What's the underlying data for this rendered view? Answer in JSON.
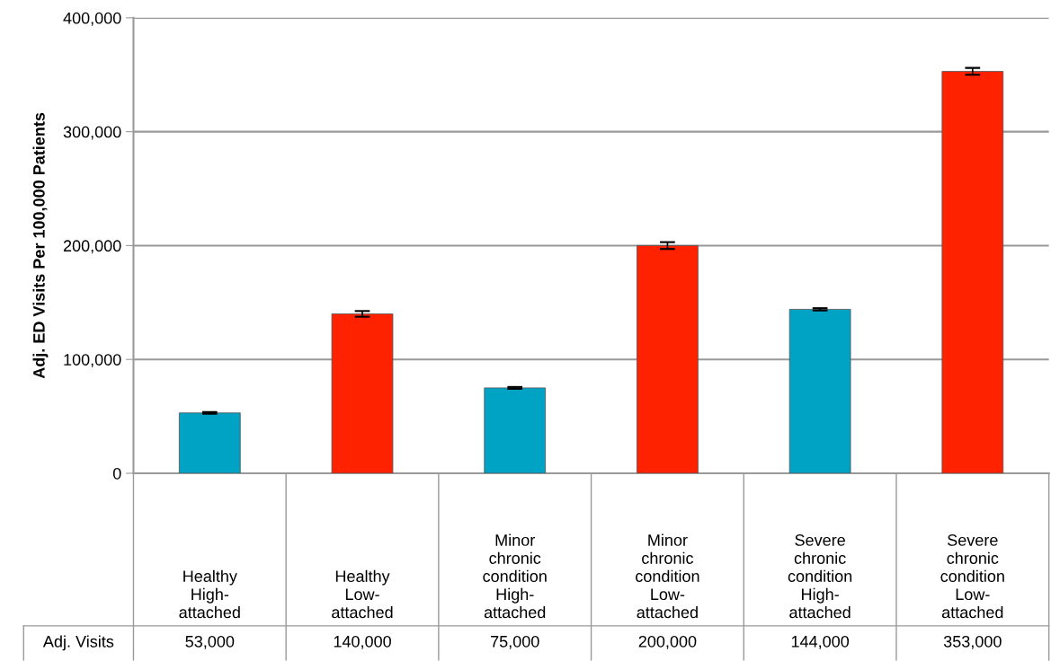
{
  "chart_data": {
    "type": "bar",
    "ylabel": "Adj. ED Visits Per 100,000 Patients",
    "categories": [
      "Healthy\nHigh-\nattached",
      "Healthy\nLow-\nattached",
      "Minor\nchronic\ncondition\nHigh-\nattached",
      "Minor\nchronic\ncondition\nLow-\nattached",
      "Severe\nchronic\ncondition\nHigh-\nattached",
      "Severe\nchronic\ncondition\nLow-\nattached"
    ],
    "series": [
      {
        "name": "Adj. Visits",
        "colors": [
          "#00a3c4",
          "#ff2200",
          "#00a3c4",
          "#ff2200",
          "#00a3c4",
          "#ff2200"
        ],
        "values": [
          53000,
          140000,
          75000,
          200000,
          144000,
          353000
        ],
        "errors": [
          700,
          2500,
          800,
          3000,
          1000,
          3000
        ],
        "value_labels": [
          "53,000",
          "140,000",
          "75,000",
          "200,000",
          "144,000",
          "353,000"
        ]
      }
    ],
    "ylim": [
      0,
      400000
    ],
    "yticks": [
      {
        "value": 0,
        "label": "0"
      },
      {
        "value": 100000,
        "label": "100,000"
      },
      {
        "value": 200000,
        "label": "200,000"
      },
      {
        "value": 300000,
        "label": "300,000"
      },
      {
        "value": 400000,
        "label": "400,000"
      }
    ],
    "grid": "y",
    "tick_labels": "y"
  }
}
